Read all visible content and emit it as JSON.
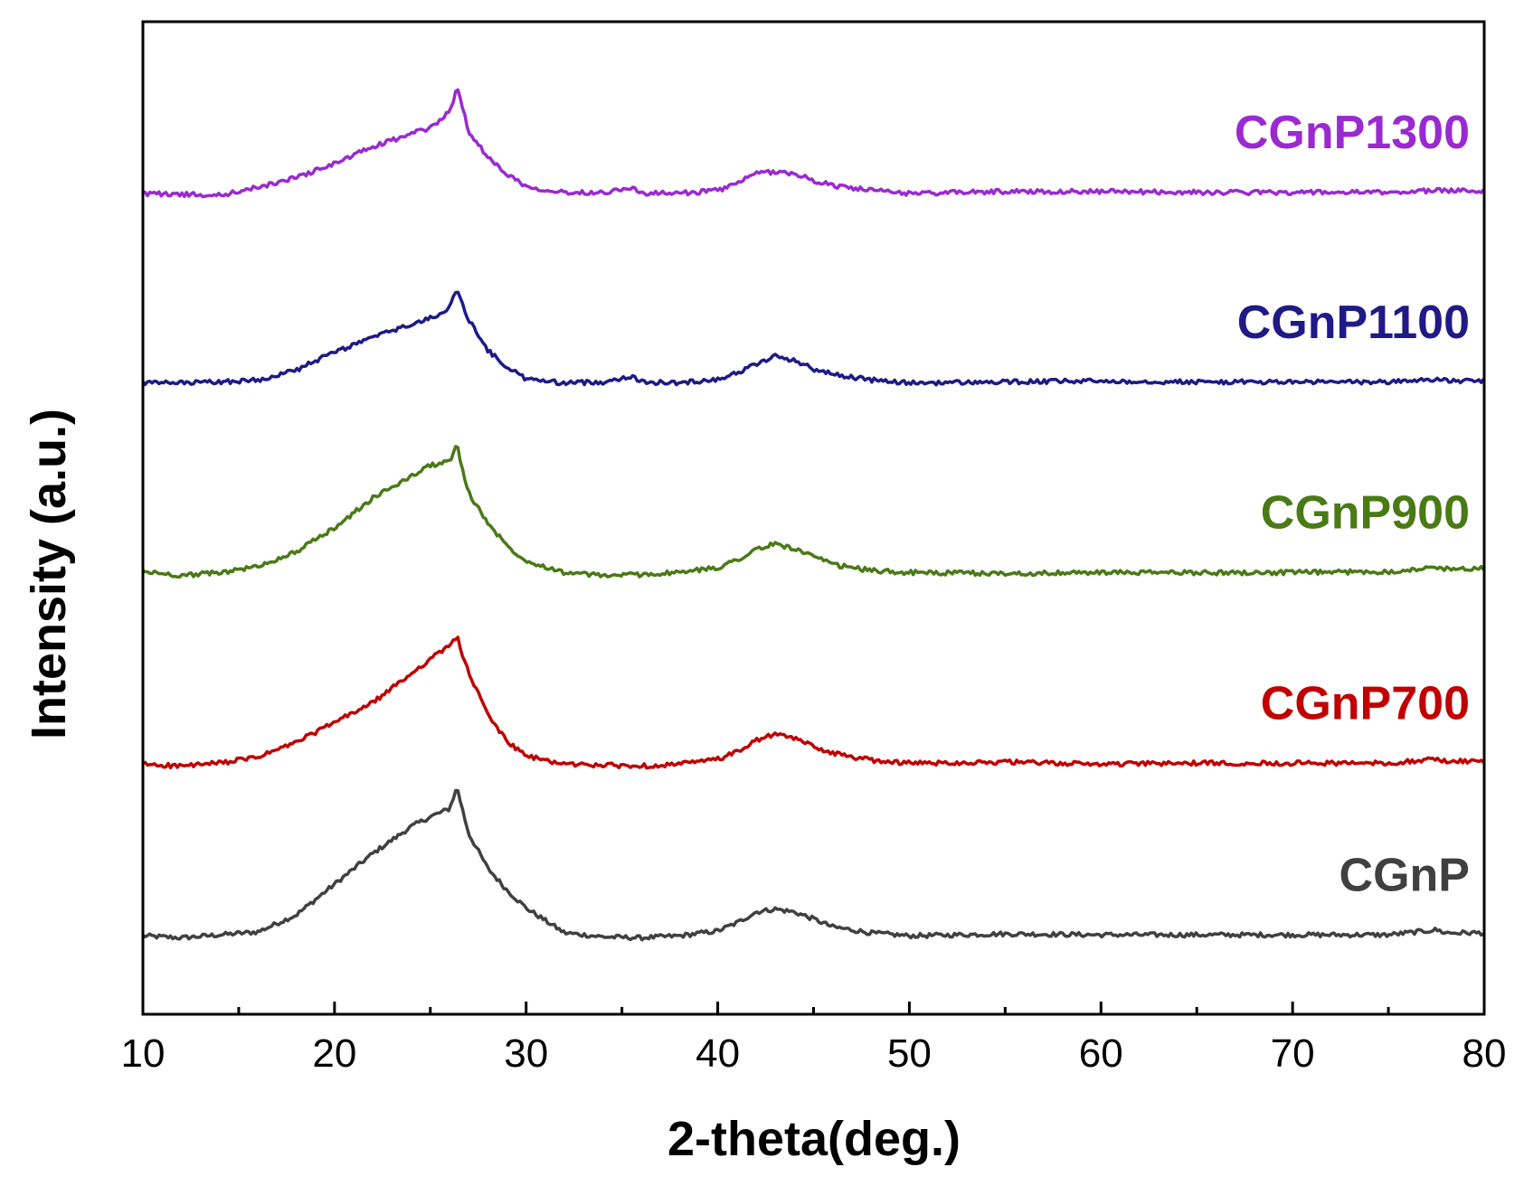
{
  "chart_data": {
    "type": "line",
    "title": "",
    "xlabel": "2-theta(deg.)",
    "ylabel": "Intensity (a.u.)",
    "xlim": [
      10,
      80
    ],
    "ylim": [
      0,
      100
    ],
    "x_ticks": [
      10,
      20,
      30,
      40,
      50,
      60,
      70,
      80
    ],
    "x_tick_labels": [
      "10",
      "20",
      "30",
      "40",
      "50",
      "60",
      "70",
      "80"
    ],
    "y_ticks_shown": false,
    "grid": false,
    "legend": "inline labels at right end of each curve",
    "series": [
      {
        "name": "CGnP",
        "color": "#404040",
        "offset": 7.7,
        "x": [
          10,
          12,
          14,
          16,
          18,
          20,
          22,
          24,
          25,
          26,
          26.4,
          26.6,
          27,
          28,
          29,
          30,
          32,
          34,
          36,
          38,
          40,
          41,
          42,
          43,
          44,
          45,
          46,
          48,
          50,
          55,
          60,
          65,
          70,
          75,
          77.5,
          78,
          80
        ],
        "values": [
          0.2,
          0.0,
          0.3,
          0.6,
          2.3,
          5.4,
          8.5,
          11.2,
          12.2,
          13.0,
          15.2,
          13.5,
          10.5,
          7.0,
          4.8,
          3.0,
          0.5,
          0.1,
          0.0,
          0.2,
          0.7,
          1.5,
          2.6,
          2.9,
          2.6,
          1.9,
          1.1,
          0.5,
          0.2,
          0.4,
          0.3,
          0.3,
          0.3,
          0.3,
          0.8,
          0.5,
          0.5
        ]
      },
      {
        "name": "CGnP700",
        "color": "#c00000",
        "offset": 25.0,
        "x": [
          10,
          12,
          14,
          16,
          18,
          20,
          22,
          24,
          25,
          26,
          26.4,
          26.6,
          27,
          28,
          29,
          30,
          32,
          34,
          36,
          38,
          40,
          41,
          42,
          43,
          44,
          45,
          46,
          48,
          50,
          55,
          60,
          65,
          70,
          75,
          77.5,
          78,
          80
        ],
        "values": [
          0.2,
          0.0,
          0.3,
          0.9,
          2.4,
          4.4,
          6.4,
          9.3,
          10.8,
          12.1,
          13.2,
          11.6,
          9.4,
          5.2,
          2.5,
          1.0,
          0.2,
          0.1,
          0.0,
          0.2,
          0.7,
          1.4,
          2.6,
          3.2,
          2.8,
          2.0,
          1.3,
          0.6,
          0.3,
          0.4,
          0.2,
          0.3,
          0.3,
          0.3,
          0.7,
          0.5,
          0.5
        ]
      },
      {
        "name": "CGnP900",
        "color": "#4a7a16",
        "offset": 44.2,
        "x": [
          10,
          12,
          14,
          16,
          18,
          20,
          22,
          24,
          25,
          26,
          26.4,
          26.6,
          27,
          28,
          29,
          30,
          32,
          34,
          36,
          38,
          40,
          41,
          42,
          43,
          44,
          45,
          46,
          48,
          50,
          55,
          60,
          65,
          70,
          75,
          77.5,
          78,
          80
        ],
        "values": [
          0.4,
          0.0,
          0.3,
          0.9,
          2.4,
          4.8,
          7.8,
          10.0,
          11.1,
          11.5,
          13.2,
          11.2,
          8.3,
          5.3,
          3.0,
          1.5,
          0.3,
          0.0,
          0.1,
          0.3,
          0.8,
          1.6,
          2.6,
          3.2,
          2.7,
          1.9,
          1.1,
          0.5,
          0.3,
          0.2,
          0.3,
          0.3,
          0.3,
          0.4,
          0.8,
          0.7,
          0.7
        ]
      },
      {
        "name": "CGnP1100",
        "color": "#1f1a86",
        "offset": 63.4,
        "x": [
          10,
          12,
          14,
          16,
          18,
          20,
          22,
          24,
          25,
          26,
          26.4,
          26.6,
          27,
          28,
          29,
          30,
          32,
          34,
          35.5,
          36,
          38,
          40,
          41,
          42,
          43,
          44,
          45,
          46,
          48,
          50,
          55,
          60,
          65,
          70,
          75,
          77.5,
          78,
          80
        ],
        "values": [
          0.2,
          0.2,
          0.3,
          0.5,
          1.5,
          3.3,
          4.8,
          6.1,
          6.7,
          7.8,
          9.6,
          8.5,
          6.6,
          3.5,
          1.8,
          0.6,
          0.2,
          0.3,
          0.9,
          0.3,
          0.2,
          0.6,
          1.2,
          2.1,
          2.9,
          2.5,
          1.6,
          1.1,
          0.5,
          0.2,
          0.3,
          0.4,
          0.3,
          0.3,
          0.3,
          0.6,
          0.4,
          0.4
        ]
      },
      {
        "name": "CGnP1300",
        "color": "#9a2ad0",
        "offset": 82.5,
        "x": [
          10,
          12,
          14,
          16,
          18,
          20,
          22,
          24,
          25,
          26,
          26.4,
          26.6,
          27,
          28,
          29,
          30,
          32,
          34,
          35.5,
          36,
          38,
          40,
          41,
          42,
          43,
          44,
          45,
          46,
          48,
          50,
          55,
          60,
          65,
          70,
          75,
          77.5,
          78,
          80
        ],
        "values": [
          0.2,
          0.1,
          0.0,
          0.8,
          1.8,
          3.2,
          4.9,
          6.2,
          6.8,
          8.4,
          10.8,
          9.5,
          6.5,
          3.8,
          2.2,
          0.9,
          0.3,
          0.3,
          0.8,
          0.2,
          0.2,
          0.5,
          1.2,
          2.2,
          2.4,
          2.2,
          1.5,
          1.0,
          0.5,
          0.2,
          0.4,
          0.4,
          0.3,
          0.3,
          0.3,
          0.5,
          0.5,
          0.5
        ]
      }
    ]
  }
}
